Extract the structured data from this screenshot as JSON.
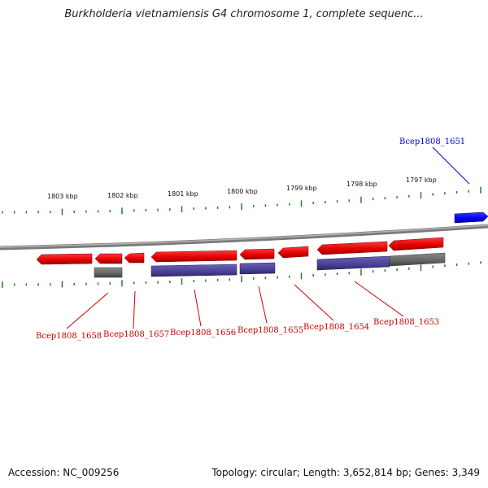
{
  "title": "Burkholderia vietnamiensis G4 chromosome 1, complete sequenc...",
  "footer": {
    "accession": "Accession: NC_009256",
    "stats": "Topology: circular; Length: 3,652,814 bp; Genes: 3,349"
  },
  "colors": {
    "gene_highlight": "#e60000",
    "gene_forward": "#0000ff",
    "cds_block": "#4a4096",
    "other_block": "#646464",
    "tick": "#2a7a2a",
    "backbone": "#8c8c8c",
    "label_red": "#cc0000",
    "label_blue": "#0000cc"
  },
  "ruler": {
    "unit": "kbp",
    "labels": [
      "1803 kbp",
      "1802 kbp",
      "1801 kbp",
      "1800 kbp",
      "1799 kbp",
      "1798 kbp",
      "1797 kbp"
    ]
  },
  "genes": [
    {
      "id": "Bcep1808_1658",
      "strand": "reverse",
      "color_key": "label_red"
    },
    {
      "id": "Bcep1808_1657",
      "strand": "reverse",
      "color_key": "label_red"
    },
    {
      "id": "Bcep1808_1656",
      "strand": "reverse",
      "color_key": "label_red"
    },
    {
      "id": "Bcep1808_1655",
      "strand": "reverse",
      "color_key": "label_red"
    },
    {
      "id": "Bcep1808_1654",
      "strand": "reverse",
      "color_key": "label_red"
    },
    {
      "id": "Bcep1808_1653",
      "strand": "reverse",
      "color_key": "label_red"
    },
    {
      "id": "Bcep1808_1651",
      "strand": "forward",
      "color_key": "label_blue"
    }
  ]
}
